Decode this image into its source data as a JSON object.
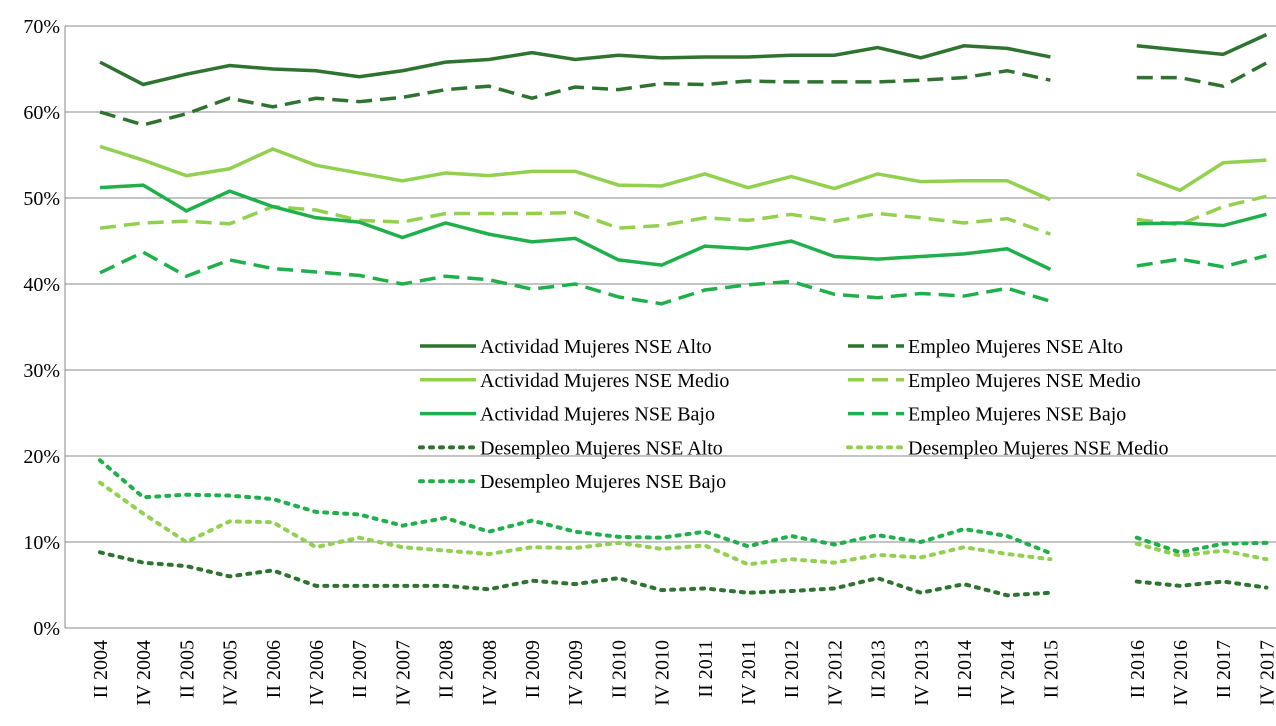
{
  "chart_data": {
    "type": "line",
    "categories": [
      "II 2004",
      "IV 2004",
      "II 2005",
      "IV 2005",
      "II 2006",
      "IV 2006",
      "II 2007",
      "IV 2007",
      "II 2008",
      "IV 2008",
      "II 2009",
      "IV 2009",
      "II 2010",
      "IV 2010",
      "II 2011",
      "IV 2011",
      "II 2012",
      "IV 2012",
      "II 2013",
      "IV 2013",
      "II 2014",
      "IV 2014",
      "II 2015",
      null,
      "II 2016",
      "IV 2016",
      "II 2017",
      "IV 2017"
    ],
    "ylim": [
      0,
      70
    ],
    "yticks": [
      {
        "value": 0,
        "label": "0%"
      },
      {
        "value": 10,
        "label": "10%"
      },
      {
        "value": 20,
        "label": "20%"
      },
      {
        "value": 30,
        "label": "30%"
      },
      {
        "value": 40,
        "label": "40%"
      },
      {
        "value": 50,
        "label": "50%"
      },
      {
        "value": 60,
        "label": "60%"
      },
      {
        "value": 70,
        "label": "70%"
      }
    ],
    "grid": true,
    "series": [
      {
        "name": "Actividad Mujeres NSE Alto",
        "color": "#2e7430",
        "dash": "solid",
        "values": [
          65.8,
          63.2,
          64.4,
          65.4,
          65.0,
          64.8,
          64.1,
          64.8,
          65.8,
          66.1,
          66.9,
          66.1,
          66.6,
          66.3,
          66.4,
          66.4,
          66.6,
          66.6,
          67.5,
          66.3,
          67.7,
          67.4,
          66.4,
          null,
          67.7,
          67.2,
          66.7,
          69.0
        ]
      },
      {
        "name": "Empleo Mujeres NSE Alto",
        "color": "#2e7430",
        "dash": "dashed",
        "values": [
          60.0,
          58.5,
          59.8,
          61.6,
          60.6,
          61.6,
          61.2,
          61.7,
          62.6,
          63.0,
          61.6,
          62.9,
          62.6,
          63.3,
          63.2,
          63.6,
          63.5,
          63.5,
          63.5,
          63.7,
          64.0,
          64.8,
          63.7,
          null,
          64.0,
          64.0,
          63.0,
          65.7
        ]
      },
      {
        "name": "Actividad Mujeres NSE Medio",
        "color": "#92d050",
        "dash": "solid",
        "values": [
          56.0,
          54.4,
          52.6,
          53.4,
          55.7,
          53.8,
          52.9,
          52.0,
          52.9,
          52.6,
          53.1,
          53.1,
          51.5,
          51.4,
          52.8,
          51.2,
          52.5,
          51.1,
          52.8,
          51.9,
          52.0,
          52.0,
          49.8,
          null,
          52.8,
          50.9,
          54.1,
          54.4
        ]
      },
      {
        "name": "Empleo Mujeres NSE Medio",
        "color": "#92d050",
        "dash": "dashed",
        "values": [
          46.5,
          47.1,
          47.3,
          47.0,
          49.0,
          48.6,
          47.4,
          47.2,
          48.2,
          48.2,
          48.2,
          48.3,
          46.5,
          46.8,
          47.7,
          47.4,
          48.1,
          47.3,
          48.2,
          47.7,
          47.1,
          47.6,
          45.8,
          null,
          47.5,
          46.9,
          49.0,
          50.2
        ]
      },
      {
        "name": "Actividad Mujeres NSE Bajo",
        "color": "#1fb04c",
        "dash": "solid",
        "values": [
          51.2,
          51.5,
          48.5,
          50.8,
          49.0,
          47.7,
          47.2,
          45.4,
          47.1,
          45.8,
          44.9,
          45.3,
          42.8,
          42.2,
          44.4,
          44.1,
          45.0,
          43.2,
          42.9,
          43.2,
          43.5,
          44.1,
          41.7,
          null,
          47.0,
          47.1,
          46.8,
          48.1
        ]
      },
      {
        "name": "Empleo Mujeres NSE Bajo",
        "color": "#1fb04c",
        "dash": "dashed",
        "values": [
          41.3,
          43.7,
          40.9,
          42.8,
          41.8,
          41.4,
          41.0,
          40.0,
          40.9,
          40.5,
          39.4,
          40.0,
          38.5,
          37.7,
          39.3,
          39.9,
          40.3,
          38.8,
          38.4,
          38.9,
          38.6,
          39.5,
          38.0,
          null,
          42.1,
          42.9,
          42.0,
          43.3
        ]
      },
      {
        "name": "Desempleo Mujeres NSE Alto",
        "color": "#2e7430",
        "dash": "dotted",
        "values": [
          8.8,
          7.6,
          7.2,
          6.0,
          6.7,
          4.9,
          4.9,
          4.9,
          4.9,
          4.5,
          5.5,
          5.1,
          5.8,
          4.4,
          4.6,
          4.1,
          4.3,
          4.6,
          5.8,
          4.1,
          5.1,
          3.8,
          4.1,
          null,
          5.4,
          4.9,
          5.4,
          4.7
        ]
      },
      {
        "name": "Desempleo Mujeres NSE Medio",
        "color": "#92d050",
        "dash": "dotted",
        "values": [
          16.9,
          13.3,
          10.0,
          12.4,
          12.3,
          9.4,
          10.5,
          9.4,
          9.0,
          8.6,
          9.4,
          9.3,
          9.9,
          9.2,
          9.6,
          7.4,
          8.0,
          7.6,
          8.5,
          8.2,
          9.4,
          8.6,
          8.0,
          null,
          9.8,
          8.4,
          9.0,
          8.0
        ]
      },
      {
        "name": "Desempleo Mujeres NSE Bajo",
        "color": "#1fb04c",
        "dash": "dotted",
        "values": [
          19.5,
          15.2,
          15.5,
          15.4,
          15.0,
          13.5,
          13.2,
          11.9,
          12.8,
          11.2,
          12.5,
          11.2,
          10.6,
          10.5,
          11.2,
          9.5,
          10.7,
          9.7,
          10.8,
          10.0,
          11.5,
          10.7,
          8.7,
          null,
          10.5,
          8.8,
          9.8,
          9.9
        ]
      }
    ]
  }
}
